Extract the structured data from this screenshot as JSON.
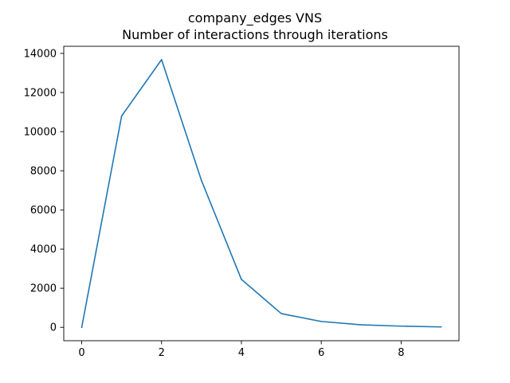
{
  "chart_data": {
    "type": "line",
    "title": "company_edges VNS",
    "subtitle": "Number of interactions through iterations",
    "xlabel": "",
    "ylabel": "",
    "x": [
      0,
      1,
      2,
      3,
      4,
      5,
      6,
      7,
      8,
      9
    ],
    "series": [
      {
        "values": [
          0,
          10800,
          13680,
          7500,
          2450,
          700,
          300,
          130,
          60,
          20
        ],
        "color": "#1f77b4"
      }
    ],
    "xlim": [
      -0.45,
      9.45
    ],
    "ylim": [
      -684,
      14364
    ],
    "xticks": [
      0,
      2,
      4,
      6,
      8
    ],
    "yticks": [
      0,
      2000,
      4000,
      6000,
      8000,
      10000,
      12000,
      14000
    ],
    "grid": false,
    "legend": "none"
  }
}
